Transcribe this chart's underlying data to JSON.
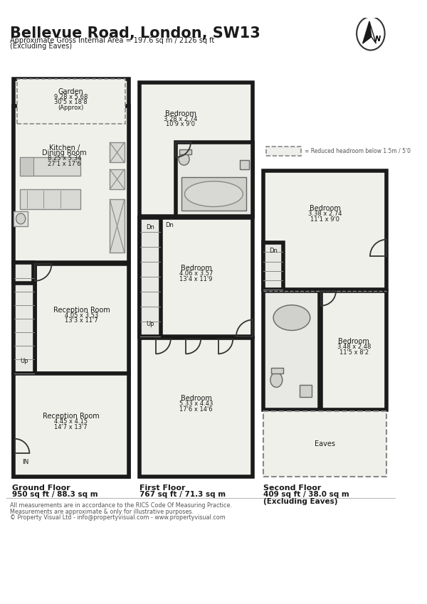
{
  "title": "Bellevue Road, London, SW13",
  "subtitle": "Approximate Gross Internal Area = 197.6 sq m / 2126 sq ft\n(Excluding Eaves)",
  "footer_line1": "All measurements are in accordance to the RICS Code Of Measuring Practice.",
  "footer_line2": "Measurements are approximate & only for illustrative purposes.",
  "footer_line3": "© Property Visual Ltd - info@propertyvisual.com - www.propertyvisual.com",
  "bg_color": "#ffffff",
  "wall_color": "#1a1a1a",
  "floor_bg": "#f5f5f0",
  "ground_floor_label": "Ground Floor",
  "ground_floor_area": "950 sq ft / 88.3 sq m",
  "first_floor_label": "First Floor",
  "first_floor_area": "767 sq ft / 71.3 sq m",
  "second_floor_label": "Second Floor",
  "second_floor_area": "409 sq ft / 38.0 sq m\n(Excluding Eaves)",
  "reduced_headroom": "= Reduced headroom below 1.5m / 5'0"
}
